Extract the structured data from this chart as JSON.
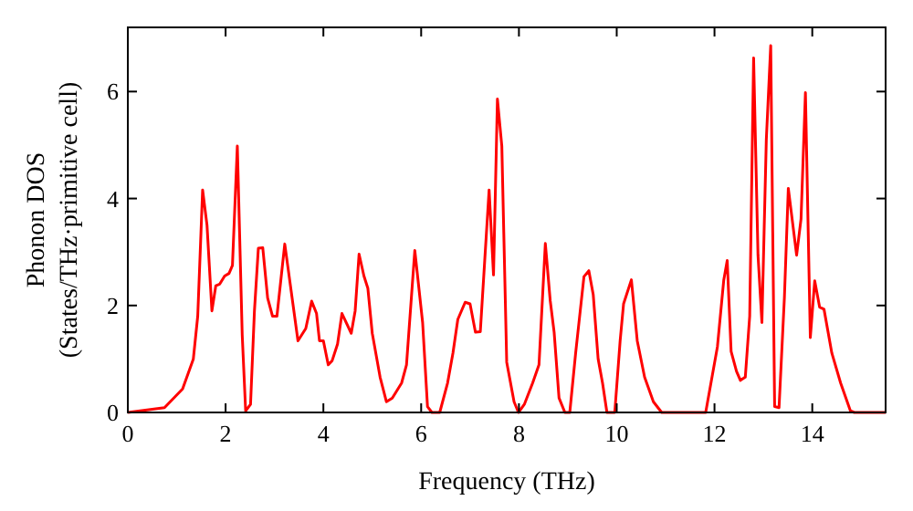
{
  "chart_data": {
    "type": "line",
    "xlabel": "Frequency (THz)",
    "ylabel": "Phonon DOS\n(States/THz·primitive cell)",
    "xlim": [
      0,
      15.5
    ],
    "ylim": [
      0,
      7.2
    ],
    "xticks": [
      0,
      2,
      4,
      6,
      8,
      10,
      12,
      14
    ],
    "yticks": [
      0,
      2,
      4,
      6
    ],
    "grid": false,
    "marker": "none",
    "line_style": "solid",
    "series": [
      {
        "color": "#ff0000",
        "x": [
          0,
          0.75,
          1.12,
          1.34,
          1.43,
          1.53,
          1.62,
          1.72,
          1.8,
          1.88,
          1.98,
          2.07,
          2.14,
          2.24,
          2.34,
          2.41,
          2.51,
          2.59,
          2.67,
          2.76,
          2.86,
          2.96,
          3.05,
          3.21,
          3.48,
          3.64,
          3.76,
          3.86,
          3.92,
          4.0,
          4.1,
          4.18,
          4.29,
          4.38,
          4.57,
          4.65,
          4.73,
          4.83,
          4.91,
          5.0,
          5.16,
          5.29,
          5.41,
          5.6,
          5.7,
          5.87,
          6.03,
          6.13,
          6.22,
          6.38,
          6.54,
          6.65,
          6.75,
          6.9,
          7.0,
          7.11,
          7.21,
          7.3,
          7.39,
          7.48,
          7.56,
          7.65,
          7.75,
          7.9,
          7.99,
          8.11,
          8.28,
          8.41,
          8.54,
          8.64,
          8.72,
          8.82,
          8.94,
          9.04,
          9.16,
          9.33,
          9.43,
          9.52,
          9.62,
          9.71,
          9.8,
          9.96,
          10.07,
          10.14,
          10.3,
          10.42,
          10.57,
          10.75,
          10.92,
          11.82,
          12.06,
          12.19,
          12.26,
          12.34,
          12.45,
          12.53,
          12.63,
          12.72,
          12.8,
          12.89,
          12.97,
          13.06,
          13.15,
          13.23,
          13.32,
          13.43,
          13.51,
          13.68,
          13.77,
          13.86,
          13.96,
          14.05,
          14.15,
          14.24,
          14.4,
          14.58,
          14.78,
          14.86,
          15.5
        ],
        "values": [
          0,
          0.09,
          0.44,
          1.0,
          1.8,
          4.16,
          3.5,
          1.9,
          2.37,
          2.4,
          2.55,
          2.6,
          2.75,
          4.98,
          1.45,
          0.03,
          0.15,
          1.9,
          3.07,
          3.08,
          2.14,
          1.8,
          1.8,
          3.15,
          1.34,
          1.57,
          2.08,
          1.85,
          1.34,
          1.34,
          0.89,
          0.97,
          1.28,
          1.85,
          1.48,
          1.9,
          2.96,
          2.55,
          2.32,
          1.48,
          0.66,
          0.2,
          0.27,
          0.55,
          0.89,
          3.03,
          1.68,
          0.11,
          0,
          0,
          0.55,
          1.11,
          1.74,
          2.06,
          2.03,
          1.5,
          1.51,
          2.84,
          4.16,
          2.57,
          5.86,
          4.98,
          0.94,
          0.2,
          0,
          0.15,
          0.55,
          0.89,
          3.16,
          2.09,
          1.5,
          0.27,
          0,
          0,
          1.11,
          2.54,
          2.65,
          2.2,
          1.0,
          0.55,
          0,
          0,
          1.34,
          2.03,
          2.48,
          1.34,
          0.66,
          0.2,
          0,
          0,
          1.23,
          2.48,
          2.84,
          1.14,
          0.77,
          0.6,
          0.66,
          1.8,
          6.63,
          2.94,
          1.68,
          5.1,
          6.86,
          0.11,
          0.09,
          2.15,
          4.19,
          2.94,
          3.62,
          5.98,
          1.4,
          2.46,
          1.97,
          1.93,
          1.11,
          0.55,
          0.03,
          0,
          0
        ]
      }
    ]
  }
}
